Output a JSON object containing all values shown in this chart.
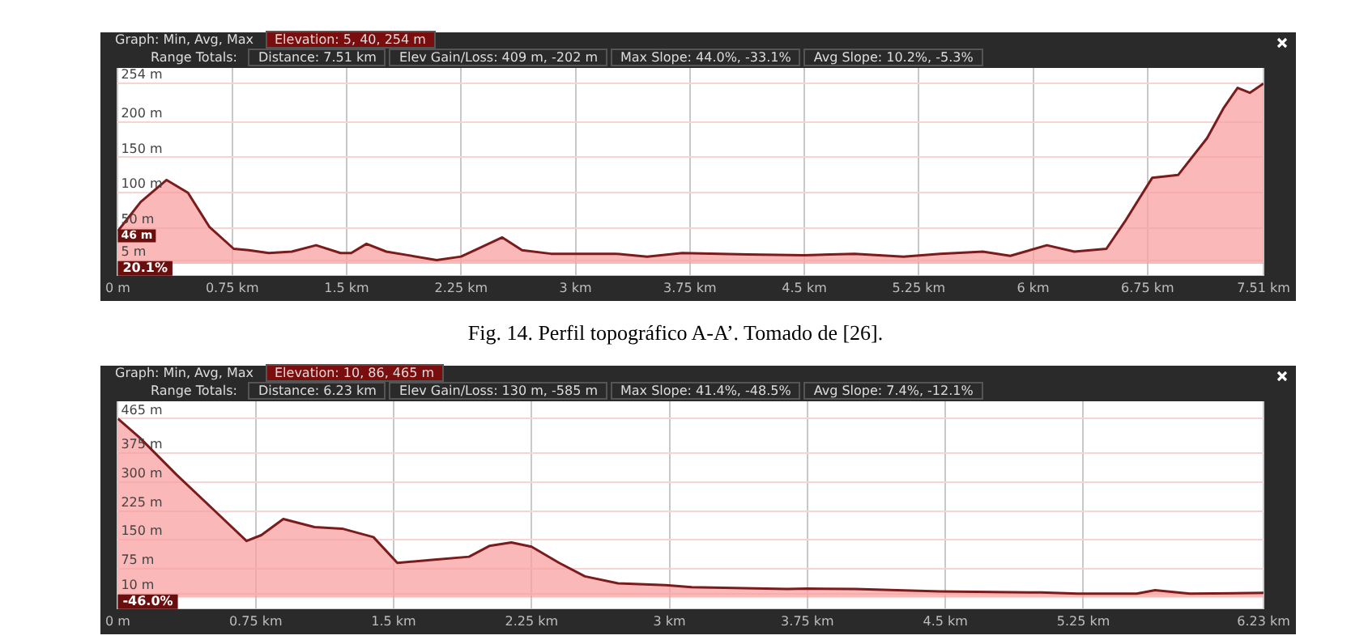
{
  "chart_data": [
    {
      "type": "area",
      "annotations": [
        "Graph: Min, Avg, Max",
        "Elevation: 5, 40, 254 m",
        "Range Totals:",
        "Distance: 7.51 km",
        "Elev Gain/Loss: 409 m, -202 m",
        "Max Slope: 44.0%, -33.1%",
        "Avg Slope: 10.2%, -5.3%",
        {
          "text": "46 m",
          "x": 0,
          "y": 46
        },
        "20.1%"
      ],
      "grid": true,
      "xlim": [
        0,
        7.51
      ],
      "ylim": [
        -17,
        276
      ],
      "xticks": [
        {
          "value": 0,
          "label": "0 m"
        },
        {
          "value": 0.75,
          "label": "0.75 km"
        },
        {
          "value": 1.5,
          "label": "1.5 km"
        },
        {
          "value": 2.25,
          "label": "2.25 km"
        },
        {
          "value": 3,
          "label": "3 km"
        },
        {
          "value": 3.75,
          "label": "3.75 km"
        },
        {
          "value": 4.5,
          "label": "4.5 km"
        },
        {
          "value": 5.25,
          "label": "5.25 km"
        },
        {
          "value": 6,
          "label": "6 km"
        },
        {
          "value": 6.75,
          "label": "6.75 km"
        },
        {
          "value": 7.51,
          "label": "7.51 km"
        }
      ],
      "yticks": [
        {
          "value": 5,
          "label": "5 m"
        },
        {
          "value": 50,
          "label": "50 m"
        },
        {
          "value": 100,
          "label": "100 m"
        },
        {
          "value": 150,
          "label": "150 m"
        },
        {
          "value": 200,
          "label": "200 m"
        },
        {
          "value": 254,
          "label": "254 m"
        }
      ],
      "x": [
        0,
        0.15,
        0.32,
        0.46,
        0.6,
        0.76,
        0.86,
        0.99,
        1.14,
        1.3,
        1.46,
        1.53,
        1.63,
        1.76,
        1.9,
        2.09,
        2.25,
        2.39,
        2.52,
        2.65,
        2.84,
        3.26,
        3.47,
        3.7,
        4.13,
        4.5,
        4.83,
        5.15,
        5.39,
        5.67,
        5.85,
        6.09,
        6.27,
        6.48,
        6.6,
        6.78,
        6.95,
        7.14,
        7.25,
        7.34,
        7.42,
        7.51
      ],
      "series": [
        {
          "color": "#7a1c1c",
          "values": [
            46,
            87,
            118,
            100,
            52,
            21,
            19,
            15,
            17,
            26,
            15,
            15,
            28,
            17,
            12,
            5,
            10,
            24,
            37,
            19,
            14,
            14,
            10,
            15,
            13,
            12,
            14,
            10,
            14,
            17,
            11,
            26,
            17,
            21,
            59,
            121,
            125,
            177,
            220,
            248,
            241,
            254
          ]
        }
      ]
    },
    {
      "type": "other",
      "title": "Fig. 14. Perfil topográfico A-A’.  Tomado de [26]."
    },
    {
      "type": "area",
      "annotations": [
        "Graph: Min, Avg, Max",
        "Elevation: 10, 86, 465 m",
        "Range Totals:",
        "Distance: 6.23 km",
        "Elev Gain/Loss: 130 m, -585 m",
        "Max Slope: 41.4%, -48.5%",
        "Avg Slope: 7.4%, -12.1%",
        "-46.0%"
      ],
      "grid": true,
      "xlim": [
        0,
        6.23
      ],
      "ylim": [
        -30,
        510
      ],
      "xticks": [
        {
          "value": 0,
          "label": "0 m"
        },
        {
          "value": 0.75,
          "label": "0.75 km"
        },
        {
          "value": 1.5,
          "label": "1.5 km"
        },
        {
          "value": 2.25,
          "label": "2.25 km"
        },
        {
          "value": 3,
          "label": "3 km"
        },
        {
          "value": 3.75,
          "label": "3.75 km"
        },
        {
          "value": 4.5,
          "label": "4.5 km"
        },
        {
          "value": 5.25,
          "label": "5.25 km"
        },
        {
          "value": 6.23,
          "label": "6.23 km"
        }
      ],
      "yticks": [
        {
          "value": 10,
          "label": "10 m"
        },
        {
          "value": 75,
          "label": "75 m"
        },
        {
          "value": 150,
          "label": "150 m"
        },
        {
          "value": 225,
          "label": "225 m"
        },
        {
          "value": 300,
          "label": "300 m"
        },
        {
          "value": 375,
          "label": "375 m"
        },
        {
          "value": 465,
          "label": "465 m"
        }
      ],
      "x": [
        0,
        0.12,
        0.32,
        0.53,
        0.7,
        0.78,
        0.9,
        1.07,
        1.22,
        1.39,
        1.52,
        1.71,
        1.91,
        2.02,
        2.14,
        2.25,
        2.4,
        2.54,
        2.72,
        2.98,
        3.12,
        3.64,
        3.75,
        4.01,
        4.47,
        5.02,
        5.22,
        5.54,
        5.64,
        5.83,
        6.23
      ],
      "series": [
        {
          "color": "#7a1c1c",
          "values": [
            465,
            415,
            319,
            224,
            147,
            162,
            204,
            183,
            179,
            157,
            90,
            98,
            106,
            134,
            143,
            132,
            90,
            55,
            37,
            32,
            27,
            22,
            23,
            22,
            16,
            13,
            10,
            10,
            19,
            10,
            12
          ]
        }
      ]
    }
  ]
}
